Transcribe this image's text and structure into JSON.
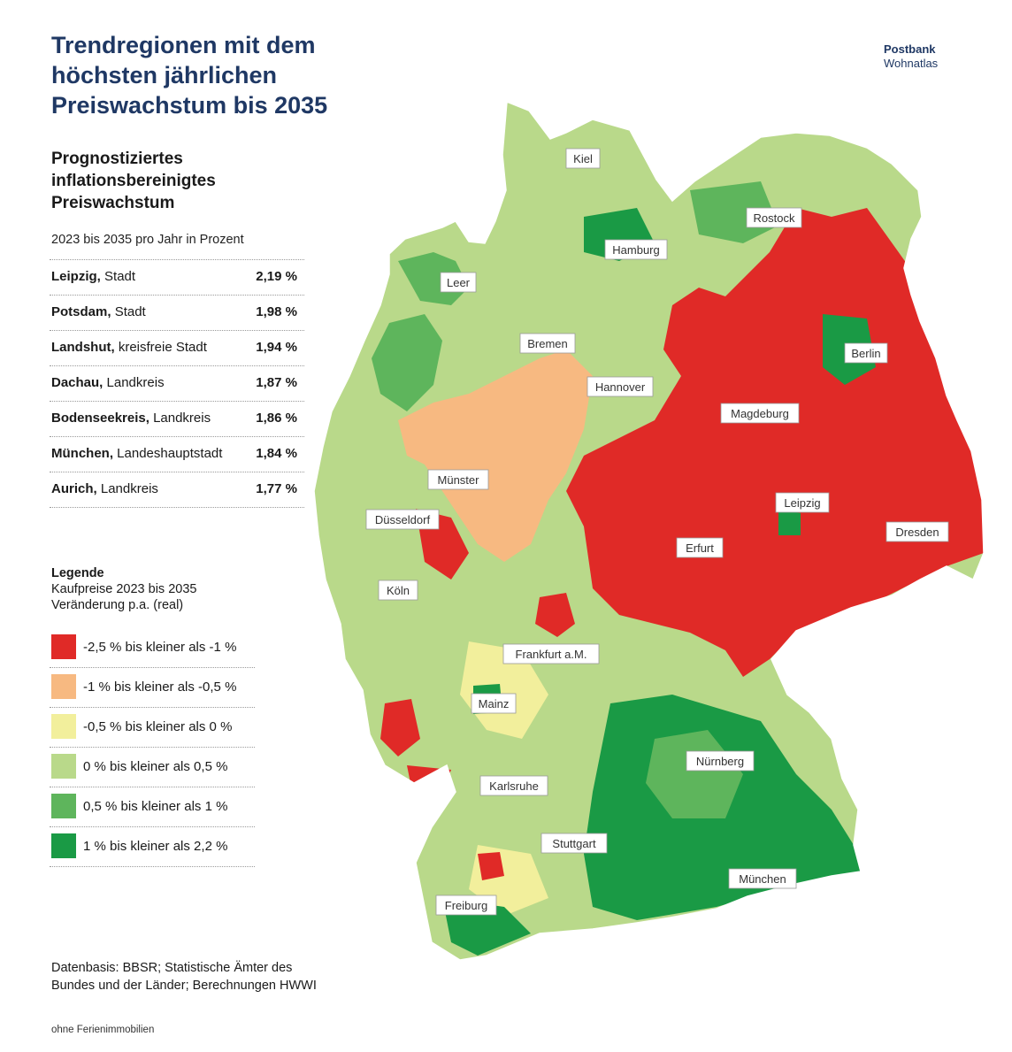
{
  "title": "Trendregionen mit dem höchsten jährlichen Preiswachstum bis 2035",
  "brand": {
    "name": "Postbank",
    "sub": "Wohnatlas"
  },
  "subtitle": "Prognostiziertes inflationsbereinigtes Preiswachstum",
  "period": "2023 bis 2035 pro Jahr in Prozent",
  "ranking": [
    {
      "name": "Leipzig,",
      "type": "Stadt",
      "value": "2,19 %"
    },
    {
      "name": "Potsdam,",
      "type": "Stadt",
      "value": "1,98 %"
    },
    {
      "name": "Landshut,",
      "type": "kreisfreie Stadt",
      "value": "1,94 %"
    },
    {
      "name": "Dachau,",
      "type": "Landkreis",
      "value": "1,87 %"
    },
    {
      "name": "Bodenseekreis,",
      "type": "Landkreis",
      "value": "1,86 %"
    },
    {
      "name": "München,",
      "type": "Landeshauptstadt",
      "value": "1,84 %"
    },
    {
      "name": "Aurich,",
      "type": "Landkreis",
      "value": "1,77 %"
    }
  ],
  "legend": {
    "title": "Legende",
    "line1": "Kaufpreise 2023 bis 2035",
    "line2": "Veränderung p.a. (real)",
    "items": [
      {
        "label": "-2,5 % bis kleiner als -1 %",
        "color": "#e02a27"
      },
      {
        "label": "-1 % bis kleiner als -0,5 %",
        "color": "#f7b981"
      },
      {
        "label": "-0,5 % bis kleiner als 0 %",
        "color": "#f2ef9c"
      },
      {
        "label": "0 % bis kleiner als 0,5 %",
        "color": "#b9d98a"
      },
      {
        "label": "0,5 % bis kleiner als 1 %",
        "color": "#5eb55c"
      },
      {
        "label": "1 % bis kleiner als 2,2 %",
        "color": "#1a9a45"
      }
    ]
  },
  "source": "Datenbasis: BBSR; Statistische Ämter des Bundes und der Länder; Berechnungen HWWI",
  "note": "ohne Ferienimmobilien",
  "cities": {
    "kiel": "Kiel",
    "rostock": "Rostock",
    "hamburg": "Hamburg",
    "leer": "Leer",
    "bremen": "Bremen",
    "berlin": "Berlin",
    "hannover": "Hannover",
    "magdeburg": "Magdeburg",
    "muenster": "Münster",
    "leipzig": "Leipzig",
    "duesseldorf": "Düsseldorf",
    "dresden": "Dresden",
    "erfurt": "Erfurt",
    "koeln": "Köln",
    "frankfurt": "Frankfurt a.M.",
    "mainz": "Mainz",
    "nuernberg": "Nürnberg",
    "karlsruhe": "Karlsruhe",
    "stuttgart": "Stuttgart",
    "muenchen": "München",
    "freiburg": "Freiburg"
  }
}
